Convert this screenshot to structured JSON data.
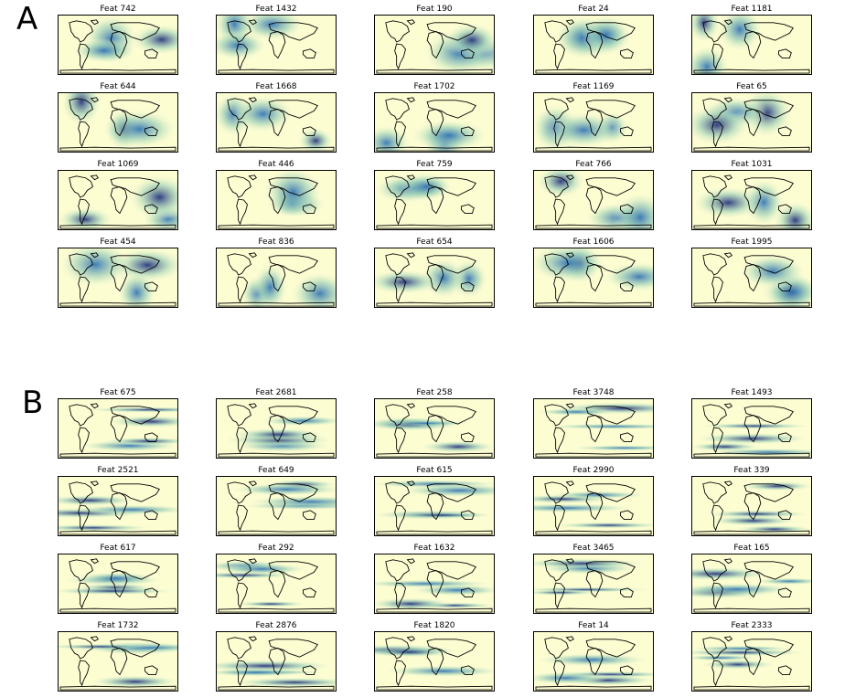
{
  "colors": {
    "low": "#fdfdd2",
    "mid": "#9fd2b8",
    "high": "#2c6fb3",
    "max": "#1a2a7a",
    "coast": "#000000"
  },
  "panels": [
    {
      "label": "A",
      "features": [
        "Feat 742",
        "Feat 1432",
        "Feat 190",
        "Feat 24",
        "Feat 1181",
        "Feat 644",
        "Feat 1668",
        "Feat 1702",
        "Feat 1169",
        "Feat 65",
        "Feat 1069",
        "Feat 446",
        "Feat 759",
        "Feat 766",
        "Feat 1031",
        "Feat 454",
        "Feat 836",
        "Feat 654",
        "Feat 1606",
        "Feat 1995"
      ]
    },
    {
      "label": "B",
      "features": [
        "Feat 675",
        "Feat 2681",
        "Feat 258",
        "Feat 3748",
        "Feat 1493",
        "Feat 2521",
        "Feat 649",
        "Feat 615",
        "Feat 2990",
        "Feat 339",
        "Feat 617",
        "Feat 292",
        "Feat 1632",
        "Feat 3465",
        "Feat 165",
        "Feat 1732",
        "Feat 2876",
        "Feat 1820",
        "Feat 14",
        "Feat 2333"
      ]
    }
  ]
}
